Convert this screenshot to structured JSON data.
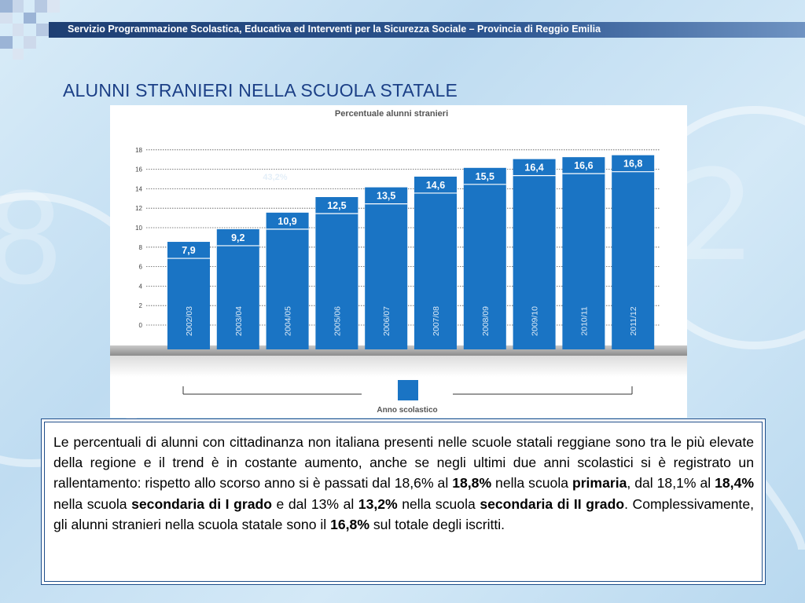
{
  "header": {
    "text": "Servizio Programmazione Scolastica, Educativa ed Interventi per la Sicurezza Sociale – Provincia di Reggio Emilia"
  },
  "slide": {
    "title": "ALUNNI STRANIERI NELLA SCUOLA STATALE"
  },
  "chart_data": {
    "type": "bar",
    "title": "Percentuale alunni stranieri",
    "xlabel": "Anno scolastico",
    "ylabel": "",
    "categories": [
      "2002/03",
      "2003/04",
      "2004/05",
      "2005/06",
      "2006/07",
      "2007/08",
      "2008/09",
      "2009/10",
      "2010/11",
      "2011/12"
    ],
    "values": [
      7.9,
      9.2,
      10.9,
      12.5,
      13.5,
      14.6,
      15.5,
      16.4,
      16.6,
      16.8
    ],
    "value_labels": [
      "7,9",
      "9,2",
      "10,9",
      "12,5",
      "13,5",
      "14,6",
      "15,5",
      "16,4",
      "16,6",
      "16,8"
    ],
    "yticks": [
      0,
      2,
      4,
      6,
      8,
      10,
      12,
      14,
      16,
      18
    ],
    "ylim": [
      0,
      18
    ],
    "grid": "horizontal dotted",
    "legend": "bottom-center",
    "bar_color": "#1a74c4",
    "ghost_annotation": "43,2%"
  },
  "body_text": {
    "p1": "Le percentuali di alunni con cittadinanza non italiana presenti nelle scuole statali reggiane sono tra le più elevate della regione e il trend è in costante aumento, anche se negli ultimi due anni scolastici si è registrato un rallentamento: rispetto allo scorso anno si è passati dal 18,6% al ",
    "b1": "18,8%",
    "p2": " nella scuola ",
    "b2": "primaria",
    "p3": ", dal 18,1% al ",
    "b3": "18,4%",
    "p4": " nella scuola ",
    "b4": "secondaria di I grado",
    "p5": " e dal 13% al ",
    "b5": "13,2%",
    "p6": " nella scuola ",
    "b6": "secondaria di II grado",
    "p7": ". Complessivamente, gli alunni stranieri nella scuola statale sono il ",
    "b7": "16,8%",
    "p8": " sul totale degli iscritti."
  }
}
